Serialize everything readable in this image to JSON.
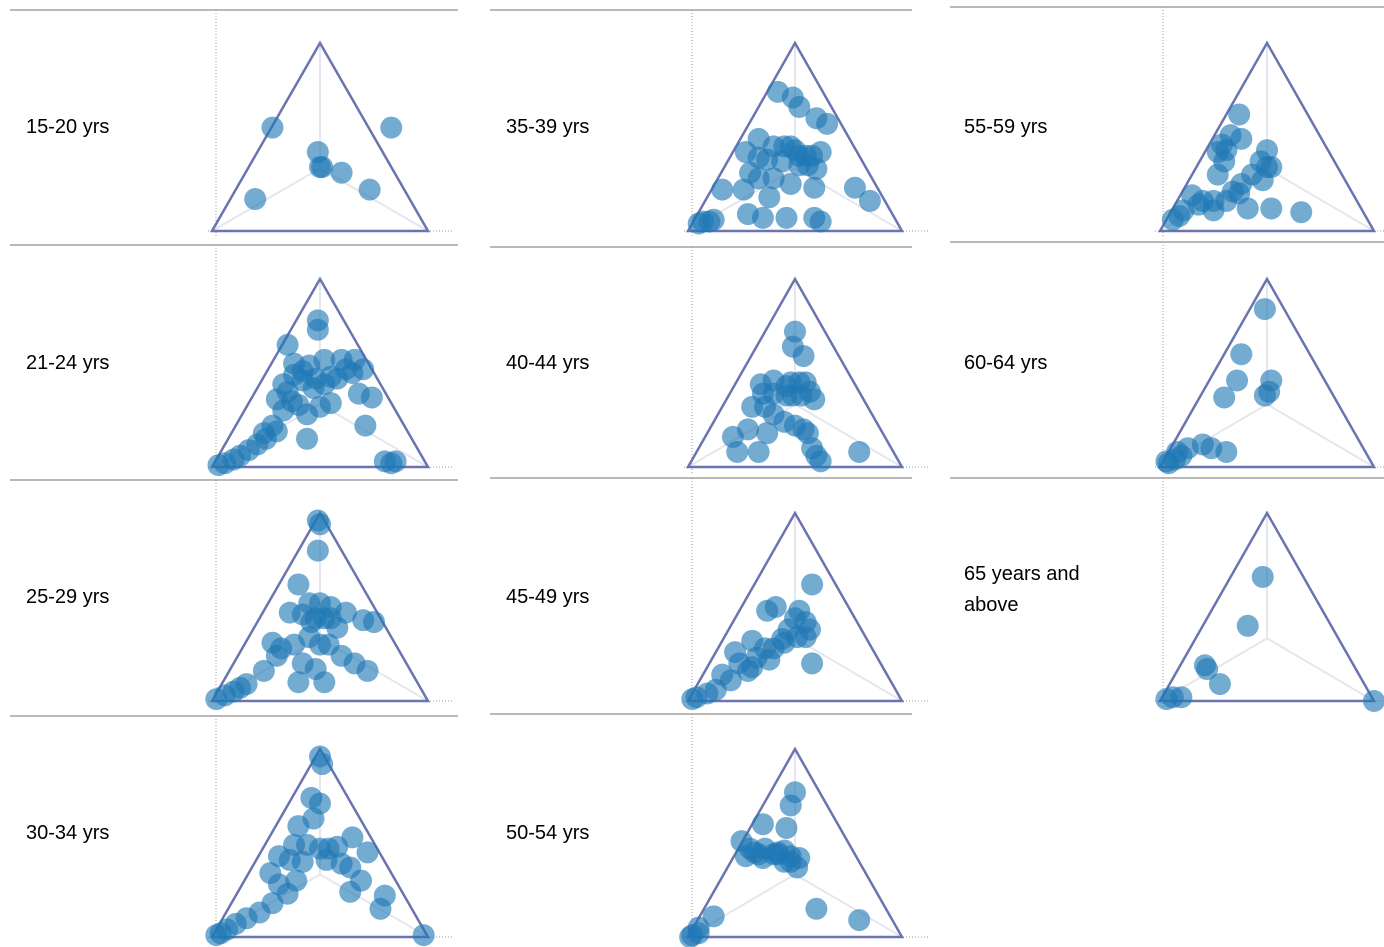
{
  "chart_data": {
    "type": "scatter",
    "coordinate_system": "ternary",
    "grid": false,
    "marker_color": "#1f77b4",
    "triangle_color": "#6a74b0",
    "panels": [
      {
        "label": "15-20 yrs",
        "points": [
          [
            0.28,
            0.55
          ],
          [
            0.83,
            0.55
          ],
          [
            0.49,
            0.42
          ],
          [
            0.5,
            0.34
          ],
          [
            0.51,
            0.34
          ],
          [
            0.6,
            0.31
          ],
          [
            0.73,
            0.22
          ],
          [
            0.2,
            0.17
          ]
        ]
      },
      {
        "label": "21-24 yrs",
        "points": [
          [
            0.49,
            0.78
          ],
          [
            0.49,
            0.73
          ],
          [
            0.35,
            0.65
          ],
          [
            0.52,
            0.57
          ],
          [
            0.66,
            0.57
          ],
          [
            0.6,
            0.57
          ],
          [
            0.65,
            0.5
          ],
          [
            0.7,
            0.52
          ],
          [
            0.38,
            0.55
          ],
          [
            0.45,
            0.54
          ],
          [
            0.38,
            0.49
          ],
          [
            0.42,
            0.46
          ],
          [
            0.48,
            0.47
          ],
          [
            0.52,
            0.44
          ],
          [
            0.55,
            0.48
          ],
          [
            0.47,
            0.42
          ],
          [
            0.33,
            0.44
          ],
          [
            0.35,
            0.4
          ],
          [
            0.3,
            0.36
          ],
          [
            0.37,
            0.35
          ],
          [
            0.33,
            0.3
          ],
          [
            0.4,
            0.33
          ],
          [
            0.44,
            0.28
          ],
          [
            0.5,
            0.32
          ],
          [
            0.55,
            0.34
          ],
          [
            0.68,
            0.39
          ],
          [
            0.74,
            0.37
          ],
          [
            0.71,
            0.22
          ],
          [
            0.44,
            0.15
          ],
          [
            0.28,
            0.22
          ],
          [
            0.24,
            0.18
          ],
          [
            0.21,
            0.12
          ],
          [
            0.17,
            0.09
          ],
          [
            0.13,
            0.06
          ],
          [
            0.1,
            0.04
          ],
          [
            0.06,
            0.02
          ],
          [
            0.03,
            0.01
          ],
          [
            0.25,
            0.15
          ],
          [
            0.3,
            0.19
          ],
          [
            0.8,
            0.03
          ],
          [
            0.83,
            0.02
          ],
          [
            0.85,
            0.03
          ],
          [
            0.58,
            0.47
          ],
          [
            0.42,
            0.51
          ],
          [
            0.62,
            0.52
          ]
        ]
      },
      {
        "label": "25-29 yrs",
        "points": [
          [
            0.49,
            0.96
          ],
          [
            0.5,
            0.94
          ],
          [
            0.49,
            0.8
          ],
          [
            0.4,
            0.62
          ],
          [
            0.45,
            0.52
          ],
          [
            0.5,
            0.52
          ],
          [
            0.55,
            0.5
          ],
          [
            0.62,
            0.47
          ],
          [
            0.7,
            0.43
          ],
          [
            0.75,
            0.42
          ],
          [
            0.36,
            0.47
          ],
          [
            0.42,
            0.46
          ],
          [
            0.48,
            0.44
          ],
          [
            0.52,
            0.44
          ],
          [
            0.55,
            0.44
          ],
          [
            0.28,
            0.31
          ],
          [
            0.32,
            0.28
          ],
          [
            0.38,
            0.3
          ],
          [
            0.45,
            0.34
          ],
          [
            0.5,
            0.3
          ],
          [
            0.54,
            0.3
          ],
          [
            0.6,
            0.24
          ],
          [
            0.66,
            0.2
          ],
          [
            0.72,
            0.16
          ],
          [
            0.3,
            0.24
          ],
          [
            0.42,
            0.2
          ],
          [
            0.48,
            0.17
          ],
          [
            0.4,
            0.1
          ],
          [
            0.52,
            0.1
          ],
          [
            0.24,
            0.16
          ],
          [
            0.16,
            0.09
          ],
          [
            0.13,
            0.07
          ],
          [
            0.1,
            0.05
          ],
          [
            0.06,
            0.03
          ],
          [
            0.02,
            0.01
          ],
          [
            0.46,
            0.42
          ],
          [
            0.58,
            0.39
          ]
        ]
      },
      {
        "label": "30-34 yrs",
        "points": [
          [
            0.5,
            0.96
          ],
          [
            0.51,
            0.92
          ],
          [
            0.46,
            0.74
          ],
          [
            0.5,
            0.71
          ],
          [
            0.4,
            0.59
          ],
          [
            0.47,
            0.63
          ],
          [
            0.65,
            0.53
          ],
          [
            0.72,
            0.45
          ],
          [
            0.58,
            0.48
          ],
          [
            0.54,
            0.47
          ],
          [
            0.44,
            0.49
          ],
          [
            0.38,
            0.49
          ],
          [
            0.31,
            0.43
          ],
          [
            0.36,
            0.41
          ],
          [
            0.42,
            0.4
          ],
          [
            0.5,
            0.47
          ],
          [
            0.53,
            0.41
          ],
          [
            0.6,
            0.39
          ],
          [
            0.64,
            0.37
          ],
          [
            0.69,
            0.3
          ],
          [
            0.64,
            0.24
          ],
          [
            0.8,
            0.22
          ],
          [
            0.78,
            0.15
          ],
          [
            0.27,
            0.34
          ],
          [
            0.31,
            0.28
          ],
          [
            0.39,
            0.3
          ],
          [
            0.35,
            0.23
          ],
          [
            0.28,
            0.18
          ],
          [
            0.22,
            0.13
          ],
          [
            0.16,
            0.1
          ],
          [
            0.11,
            0.07
          ],
          [
            0.07,
            0.04
          ],
          [
            0.04,
            0.02
          ],
          [
            0.02,
            0.01
          ],
          [
            0.98,
            0.01
          ]
        ]
      },
      {
        "label": "35-39 yrs",
        "points": [
          [
            0.42,
            0.74
          ],
          [
            0.49,
            0.71
          ],
          [
            0.52,
            0.66
          ],
          [
            0.6,
            0.6
          ],
          [
            0.65,
            0.57
          ],
          [
            0.33,
            0.49
          ],
          [
            0.4,
            0.45
          ],
          [
            0.45,
            0.45
          ],
          [
            0.48,
            0.45
          ],
          [
            0.5,
            0.43
          ],
          [
            0.52,
            0.4
          ],
          [
            0.55,
            0.4
          ],
          [
            0.58,
            0.4
          ],
          [
            0.62,
            0.42
          ],
          [
            0.27,
            0.42
          ],
          [
            0.33,
            0.39
          ],
          [
            0.37,
            0.38
          ],
          [
            0.44,
            0.37
          ],
          [
            0.52,
            0.35
          ],
          [
            0.56,
            0.35
          ],
          [
            0.6,
            0.33
          ],
          [
            0.29,
            0.31
          ],
          [
            0.33,
            0.28
          ],
          [
            0.4,
            0.28
          ],
          [
            0.48,
            0.25
          ],
          [
            0.59,
            0.23
          ],
          [
            0.78,
            0.23
          ],
          [
            0.85,
            0.16
          ],
          [
            0.16,
            0.22
          ],
          [
            0.26,
            0.22
          ],
          [
            0.38,
            0.18
          ],
          [
            0.28,
            0.09
          ],
          [
            0.35,
            0.07
          ],
          [
            0.12,
            0.06
          ],
          [
            0.1,
            0.05
          ],
          [
            0.07,
            0.05
          ],
          [
            0.05,
            0.04
          ],
          [
            0.46,
            0.07
          ],
          [
            0.59,
            0.07
          ],
          [
            0.62,
            0.05
          ]
        ]
      },
      {
        "label": "40-44 yrs",
        "points": [
          [
            0.5,
            0.72
          ],
          [
            0.49,
            0.64
          ],
          [
            0.54,
            0.59
          ],
          [
            0.34,
            0.44
          ],
          [
            0.4,
            0.46
          ],
          [
            0.46,
            0.43
          ],
          [
            0.48,
            0.45
          ],
          [
            0.52,
            0.45
          ],
          [
            0.55,
            0.45
          ],
          [
            0.35,
            0.39
          ],
          [
            0.4,
            0.39
          ],
          [
            0.46,
            0.38
          ],
          [
            0.49,
            0.38
          ],
          [
            0.53,
            0.38
          ],
          [
            0.57,
            0.4
          ],
          [
            0.59,
            0.36
          ],
          [
            0.3,
            0.32
          ],
          [
            0.36,
            0.32
          ],
          [
            0.4,
            0.28
          ],
          [
            0.45,
            0.24
          ],
          [
            0.5,
            0.22
          ],
          [
            0.54,
            0.2
          ],
          [
            0.37,
            0.18
          ],
          [
            0.21,
            0.16
          ],
          [
            0.28,
            0.2
          ],
          [
            0.23,
            0.08
          ],
          [
            0.33,
            0.08
          ],
          [
            0.6,
            0.06
          ],
          [
            0.58,
            0.1
          ],
          [
            0.62,
            0.03
          ],
          [
            0.8,
            0.08
          ],
          [
            0.56,
            0.18
          ]
        ]
      },
      {
        "label": "45-49 yrs",
        "points": [
          [
            0.58,
            0.62
          ],
          [
            0.37,
            0.48
          ],
          [
            0.41,
            0.5
          ],
          [
            0.5,
            0.44
          ],
          [
            0.52,
            0.48
          ],
          [
            0.55,
            0.42
          ],
          [
            0.47,
            0.38
          ],
          [
            0.44,
            0.33
          ],
          [
            0.51,
            0.34
          ],
          [
            0.55,
            0.34
          ],
          [
            0.57,
            0.38
          ],
          [
            0.3,
            0.32
          ],
          [
            0.36,
            0.28
          ],
          [
            0.32,
            0.23
          ],
          [
            0.38,
            0.22
          ],
          [
            0.22,
            0.26
          ],
          [
            0.24,
            0.2
          ],
          [
            0.28,
            0.16
          ],
          [
            0.16,
            0.14
          ],
          [
            0.2,
            0.11
          ],
          [
            0.13,
            0.06
          ],
          [
            0.09,
            0.04
          ],
          [
            0.04,
            0.02
          ],
          [
            0.02,
            0.01
          ],
          [
            0.58,
            0.2
          ],
          [
            0.45,
            0.31
          ],
          [
            0.4,
            0.28
          ],
          [
            0.3,
            0.18
          ]
        ]
      },
      {
        "label": "50-54 yrs",
        "points": [
          [
            0.5,
            0.77
          ],
          [
            0.48,
            0.7
          ],
          [
            0.35,
            0.6
          ],
          [
            0.46,
            0.58
          ],
          [
            0.25,
            0.51
          ],
          [
            0.29,
            0.47
          ],
          [
            0.31,
            0.45
          ],
          [
            0.36,
            0.47
          ],
          [
            0.4,
            0.44
          ],
          [
            0.42,
            0.44
          ],
          [
            0.45,
            0.46
          ],
          [
            0.48,
            0.43
          ],
          [
            0.45,
            0.4
          ],
          [
            0.48,
            0.4
          ],
          [
            0.51,
            0.37
          ],
          [
            0.52,
            0.42
          ],
          [
            0.33,
            0.44
          ],
          [
            0.35,
            0.42
          ],
          [
            0.27,
            0.43
          ],
          [
            0.6,
            0.15
          ],
          [
            0.8,
            0.09
          ],
          [
            0.12,
            0.11
          ],
          [
            0.05,
            0.05
          ],
          [
            0.02,
            0.01
          ],
          [
            0.01,
            0.0
          ],
          [
            0.05,
            0.02
          ],
          [
            0.42,
            0.45
          ]
        ]
      },
      {
        "label": "55-59 yrs",
        "points": [
          [
            0.37,
            0.62
          ],
          [
            0.33,
            0.51
          ],
          [
            0.38,
            0.49
          ],
          [
            0.29,
            0.46
          ],
          [
            0.31,
            0.43
          ],
          [
            0.27,
            0.42
          ],
          [
            0.5,
            0.43
          ],
          [
            0.47,
            0.37
          ],
          [
            0.5,
            0.34
          ],
          [
            0.52,
            0.34
          ],
          [
            0.3,
            0.37
          ],
          [
            0.27,
            0.3
          ],
          [
            0.43,
            0.3
          ],
          [
            0.48,
            0.27
          ],
          [
            0.38,
            0.25
          ],
          [
            0.34,
            0.21
          ],
          [
            0.31,
            0.16
          ],
          [
            0.37,
            0.2
          ],
          [
            0.25,
            0.16
          ],
          [
            0.2,
            0.16
          ],
          [
            0.15,
            0.19
          ],
          [
            0.18,
            0.14
          ],
          [
            0.11,
            0.11
          ],
          [
            0.06,
            0.06
          ],
          [
            0.09,
            0.08
          ],
          [
            0.25,
            0.11
          ],
          [
            0.41,
            0.12
          ],
          [
            0.52,
            0.12
          ],
          [
            0.66,
            0.1
          ]
        ]
      },
      {
        "label": "60-64 yrs",
        "points": [
          [
            0.49,
            0.84
          ],
          [
            0.38,
            0.6
          ],
          [
            0.52,
            0.46
          ],
          [
            0.51,
            0.4
          ],
          [
            0.49,
            0.38
          ],
          [
            0.36,
            0.46
          ],
          [
            0.3,
            0.37
          ],
          [
            0.2,
            0.12
          ],
          [
            0.24,
            0.1
          ],
          [
            0.31,
            0.08
          ],
          [
            0.13,
            0.1
          ],
          [
            0.1,
            0.06
          ],
          [
            0.08,
            0.08
          ],
          [
            0.07,
            0.04
          ],
          [
            0.04,
            0.02
          ],
          [
            0.03,
            0.03
          ]
        ]
      },
      {
        "label": "65 years and above",
        "points": [
          [
            0.48,
            0.66
          ],
          [
            0.41,
            0.4
          ],
          [
            0.21,
            0.19
          ],
          [
            0.22,
            0.17
          ],
          [
            0.28,
            0.09
          ],
          [
            0.06,
            0.02
          ],
          [
            0.1,
            0.02
          ],
          [
            0.03,
            0.01
          ],
          [
            1.0,
            0.0
          ]
        ]
      }
    ]
  }
}
